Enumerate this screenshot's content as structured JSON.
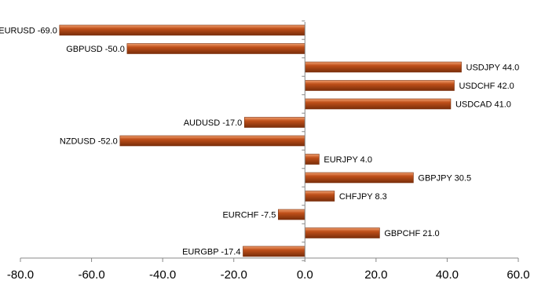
{
  "chart_data": {
    "type": "bar",
    "orientation": "horizontal",
    "categories": [
      "EURUSD",
      "GBPUSD",
      "USDJPY",
      "USDCHF",
      "USDCAD",
      "AUDUSD",
      "NZDUSD",
      "EURJPY",
      "GBPJPY",
      "CHFJPY",
      "EURCHF",
      "GBPCHF",
      "EURGBP"
    ],
    "values": [
      -69.0,
      -50.0,
      44.0,
      42.0,
      41.0,
      -17.0,
      -52.0,
      4.0,
      30.5,
      8.3,
      -7.5,
      21.0,
      -17.4
    ],
    "data_labels": [
      "EURUSD -69.0",
      "GBPUSD -50.0",
      "USDJPY 44.0",
      "USDCHF 42.0",
      "USDCAD 41.0",
      "AUDUSD -17.0",
      "NZDUSD -52.0",
      "EURJPY 4.0",
      "GBPJPY 30.5",
      "CHFJPY 8.3",
      "EURCHF -7.5",
      "GBPCHF 21.0",
      "EURGBP -17.4"
    ],
    "xlim": [
      -80,
      60
    ],
    "x_ticks": [
      -80,
      -60,
      -40,
      -20,
      0,
      20,
      40,
      60
    ],
    "x_tick_labels": [
      "-80.0",
      "-60.0",
      "-40.0",
      "-20.0",
      "0.0",
      "20.0",
      "40.0",
      "60.0"
    ],
    "grid": false,
    "bar_color": "#c0501a",
    "bar_highlight": "#f0a070",
    "bar_shadow": "#7a2e0a",
    "axis_color": "#888888"
  }
}
